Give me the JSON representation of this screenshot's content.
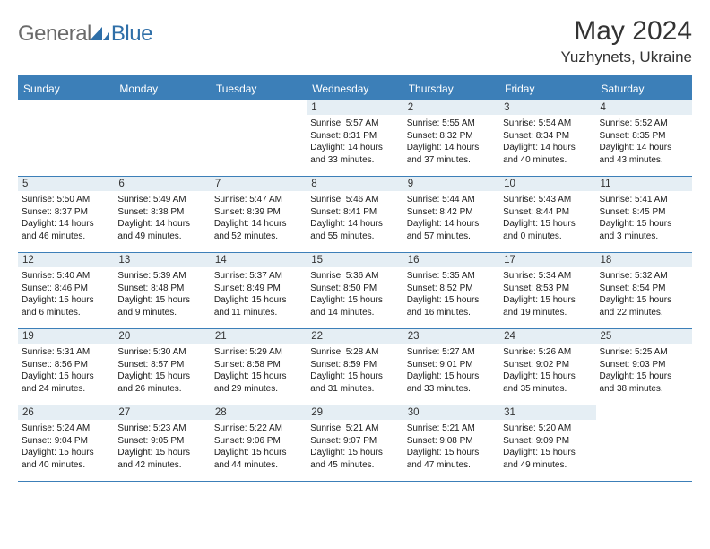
{
  "brand": {
    "part1": "General",
    "part2": "Blue"
  },
  "title": "May 2024",
  "location": "Yuzhynets, Ukraine",
  "colors": {
    "header_bg": "#3c7fb8",
    "daynum_bg": "#e5eef4",
    "border": "#3c7fb8",
    "logo_gray": "#6a6a6a",
    "logo_blue": "#2f6fa8",
    "text": "#333333"
  },
  "dayNames": [
    "Sunday",
    "Monday",
    "Tuesday",
    "Wednesday",
    "Thursday",
    "Friday",
    "Saturday"
  ],
  "weeks": [
    [
      {
        "n": "",
        "lines": []
      },
      {
        "n": "",
        "lines": []
      },
      {
        "n": "",
        "lines": []
      },
      {
        "n": "1",
        "lines": [
          "Sunrise: 5:57 AM",
          "Sunset: 8:31 PM",
          "Daylight: 14 hours",
          "and 33 minutes."
        ]
      },
      {
        "n": "2",
        "lines": [
          "Sunrise: 5:55 AM",
          "Sunset: 8:32 PM",
          "Daylight: 14 hours",
          "and 37 minutes."
        ]
      },
      {
        "n": "3",
        "lines": [
          "Sunrise: 5:54 AM",
          "Sunset: 8:34 PM",
          "Daylight: 14 hours",
          "and 40 minutes."
        ]
      },
      {
        "n": "4",
        "lines": [
          "Sunrise: 5:52 AM",
          "Sunset: 8:35 PM",
          "Daylight: 14 hours",
          "and 43 minutes."
        ]
      }
    ],
    [
      {
        "n": "5",
        "lines": [
          "Sunrise: 5:50 AM",
          "Sunset: 8:37 PM",
          "Daylight: 14 hours",
          "and 46 minutes."
        ]
      },
      {
        "n": "6",
        "lines": [
          "Sunrise: 5:49 AM",
          "Sunset: 8:38 PM",
          "Daylight: 14 hours",
          "and 49 minutes."
        ]
      },
      {
        "n": "7",
        "lines": [
          "Sunrise: 5:47 AM",
          "Sunset: 8:39 PM",
          "Daylight: 14 hours",
          "and 52 minutes."
        ]
      },
      {
        "n": "8",
        "lines": [
          "Sunrise: 5:46 AM",
          "Sunset: 8:41 PM",
          "Daylight: 14 hours",
          "and 55 minutes."
        ]
      },
      {
        "n": "9",
        "lines": [
          "Sunrise: 5:44 AM",
          "Sunset: 8:42 PM",
          "Daylight: 14 hours",
          "and 57 minutes."
        ]
      },
      {
        "n": "10",
        "lines": [
          "Sunrise: 5:43 AM",
          "Sunset: 8:44 PM",
          "Daylight: 15 hours",
          "and 0 minutes."
        ]
      },
      {
        "n": "11",
        "lines": [
          "Sunrise: 5:41 AM",
          "Sunset: 8:45 PM",
          "Daylight: 15 hours",
          "and 3 minutes."
        ]
      }
    ],
    [
      {
        "n": "12",
        "lines": [
          "Sunrise: 5:40 AM",
          "Sunset: 8:46 PM",
          "Daylight: 15 hours",
          "and 6 minutes."
        ]
      },
      {
        "n": "13",
        "lines": [
          "Sunrise: 5:39 AM",
          "Sunset: 8:48 PM",
          "Daylight: 15 hours",
          "and 9 minutes."
        ]
      },
      {
        "n": "14",
        "lines": [
          "Sunrise: 5:37 AM",
          "Sunset: 8:49 PM",
          "Daylight: 15 hours",
          "and 11 minutes."
        ]
      },
      {
        "n": "15",
        "lines": [
          "Sunrise: 5:36 AM",
          "Sunset: 8:50 PM",
          "Daylight: 15 hours",
          "and 14 minutes."
        ]
      },
      {
        "n": "16",
        "lines": [
          "Sunrise: 5:35 AM",
          "Sunset: 8:52 PM",
          "Daylight: 15 hours",
          "and 16 minutes."
        ]
      },
      {
        "n": "17",
        "lines": [
          "Sunrise: 5:34 AM",
          "Sunset: 8:53 PM",
          "Daylight: 15 hours",
          "and 19 minutes."
        ]
      },
      {
        "n": "18",
        "lines": [
          "Sunrise: 5:32 AM",
          "Sunset: 8:54 PM",
          "Daylight: 15 hours",
          "and 22 minutes."
        ]
      }
    ],
    [
      {
        "n": "19",
        "lines": [
          "Sunrise: 5:31 AM",
          "Sunset: 8:56 PM",
          "Daylight: 15 hours",
          "and 24 minutes."
        ]
      },
      {
        "n": "20",
        "lines": [
          "Sunrise: 5:30 AM",
          "Sunset: 8:57 PM",
          "Daylight: 15 hours",
          "and 26 minutes."
        ]
      },
      {
        "n": "21",
        "lines": [
          "Sunrise: 5:29 AM",
          "Sunset: 8:58 PM",
          "Daylight: 15 hours",
          "and 29 minutes."
        ]
      },
      {
        "n": "22",
        "lines": [
          "Sunrise: 5:28 AM",
          "Sunset: 8:59 PM",
          "Daylight: 15 hours",
          "and 31 minutes."
        ]
      },
      {
        "n": "23",
        "lines": [
          "Sunrise: 5:27 AM",
          "Sunset: 9:01 PM",
          "Daylight: 15 hours",
          "and 33 minutes."
        ]
      },
      {
        "n": "24",
        "lines": [
          "Sunrise: 5:26 AM",
          "Sunset: 9:02 PM",
          "Daylight: 15 hours",
          "and 35 minutes."
        ]
      },
      {
        "n": "25",
        "lines": [
          "Sunrise: 5:25 AM",
          "Sunset: 9:03 PM",
          "Daylight: 15 hours",
          "and 38 minutes."
        ]
      }
    ],
    [
      {
        "n": "26",
        "lines": [
          "Sunrise: 5:24 AM",
          "Sunset: 9:04 PM",
          "Daylight: 15 hours",
          "and 40 minutes."
        ]
      },
      {
        "n": "27",
        "lines": [
          "Sunrise: 5:23 AM",
          "Sunset: 9:05 PM",
          "Daylight: 15 hours",
          "and 42 minutes."
        ]
      },
      {
        "n": "28",
        "lines": [
          "Sunrise: 5:22 AM",
          "Sunset: 9:06 PM",
          "Daylight: 15 hours",
          "and 44 minutes."
        ]
      },
      {
        "n": "29",
        "lines": [
          "Sunrise: 5:21 AM",
          "Sunset: 9:07 PM",
          "Daylight: 15 hours",
          "and 45 minutes."
        ]
      },
      {
        "n": "30",
        "lines": [
          "Sunrise: 5:21 AM",
          "Sunset: 9:08 PM",
          "Daylight: 15 hours",
          "and 47 minutes."
        ]
      },
      {
        "n": "31",
        "lines": [
          "Sunrise: 5:20 AM",
          "Sunset: 9:09 PM",
          "Daylight: 15 hours",
          "and 49 minutes."
        ]
      },
      {
        "n": "",
        "lines": []
      }
    ]
  ]
}
